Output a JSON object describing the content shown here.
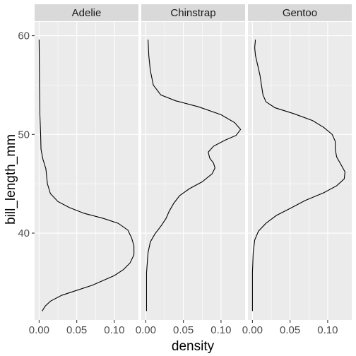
{
  "chart_data": {
    "type": "line",
    "orientation": "horizontal-density",
    "facet_by": "species",
    "xlabel": "density",
    "ylabel": "bill_length_mm",
    "xlim": [
      -0.006,
      0.132
    ],
    "ylim": [
      31.2,
      61.4
    ],
    "x_ticks": [
      0.0,
      0.05,
      0.1
    ],
    "x_tick_labels": [
      "0.00",
      "0.05",
      "0.10"
    ],
    "y_ticks": [
      40,
      50,
      60
    ],
    "y_tick_labels": [
      "40",
      "50",
      "60"
    ],
    "grid": true,
    "legend": "none",
    "panels": [
      {
        "name": "Adelie",
        "points": [
          [
            0.0,
            59.6
          ],
          [
            0.0005,
            55.0
          ],
          [
            0.001,
            52.0
          ],
          [
            0.002,
            50.0
          ],
          [
            0.0025,
            48.5
          ],
          [
            0.005,
            47.5
          ],
          [
            0.009,
            46.5
          ],
          [
            0.011,
            45.0
          ],
          [
            0.015,
            44.0
          ],
          [
            0.025,
            43.2
          ],
          [
            0.04,
            42.6
          ],
          [
            0.06,
            42.0
          ],
          [
            0.085,
            41.5
          ],
          [
            0.105,
            41.0
          ],
          [
            0.118,
            40.3
          ],
          [
            0.123,
            39.5
          ],
          [
            0.126,
            38.7
          ],
          [
            0.126,
            37.8
          ],
          [
            0.121,
            37.0
          ],
          [
            0.112,
            36.3
          ],
          [
            0.1,
            35.7
          ],
          [
            0.085,
            35.2
          ],
          [
            0.07,
            34.7
          ],
          [
            0.05,
            34.2
          ],
          [
            0.03,
            33.7
          ],
          [
            0.015,
            33.1
          ],
          [
            0.008,
            32.6
          ],
          [
            0.004,
            32.1
          ]
        ]
      },
      {
        "name": "Chinstrap",
        "points": [
          [
            0.003,
            59.6
          ],
          [
            0.004,
            58.0
          ],
          [
            0.006,
            56.5
          ],
          [
            0.01,
            55.0
          ],
          [
            0.02,
            54.0
          ],
          [
            0.04,
            53.4
          ],
          [
            0.07,
            52.8
          ],
          [
            0.1,
            52.0
          ],
          [
            0.118,
            51.2
          ],
          [
            0.126,
            50.5
          ],
          [
            0.12,
            49.9
          ],
          [
            0.105,
            49.4
          ],
          [
            0.09,
            48.8
          ],
          [
            0.083,
            48.2
          ],
          [
            0.085,
            47.6
          ],
          [
            0.09,
            47.1
          ],
          [
            0.092,
            46.6
          ],
          [
            0.088,
            46.0
          ],
          [
            0.075,
            45.2
          ],
          [
            0.058,
            44.5
          ],
          [
            0.045,
            43.8
          ],
          [
            0.037,
            43.0
          ],
          [
            0.031,
            42.2
          ],
          [
            0.027,
            41.5
          ],
          [
            0.021,
            40.8
          ],
          [
            0.012,
            39.9
          ],
          [
            0.006,
            39.1
          ],
          [
            0.003,
            38.0
          ],
          [
            0.001,
            36.0
          ],
          [
            0.001,
            34.0
          ],
          [
            0.001,
            32.1
          ]
        ]
      },
      {
        "name": "Gentoo",
        "points": [
          [
            0.004,
            59.6
          ],
          [
            0.003,
            58.8
          ],
          [
            0.004,
            58.0
          ],
          [
            0.007,
            57.0
          ],
          [
            0.01,
            56.0
          ],
          [
            0.012,
            55.0
          ],
          [
            0.014,
            54.0
          ],
          [
            0.018,
            53.3
          ],
          [
            0.03,
            52.7
          ],
          [
            0.055,
            52.1
          ],
          [
            0.08,
            51.4
          ],
          [
            0.095,
            50.7
          ],
          [
            0.106,
            50.0
          ],
          [
            0.11,
            49.3
          ],
          [
            0.11,
            48.5
          ],
          [
            0.112,
            47.7
          ],
          [
            0.118,
            46.9
          ],
          [
            0.123,
            46.2
          ],
          [
            0.122,
            45.5
          ],
          [
            0.112,
            44.8
          ],
          [
            0.095,
            44.1
          ],
          [
            0.07,
            43.3
          ],
          [
            0.05,
            42.5
          ],
          [
            0.032,
            41.8
          ],
          [
            0.018,
            41.0
          ],
          [
            0.008,
            40.2
          ],
          [
            0.003,
            39.3
          ],
          [
            0.001,
            38.0
          ],
          [
            0.0,
            36.0
          ],
          [
            0.0,
            34.0
          ],
          [
            0.0,
            32.1
          ]
        ]
      }
    ]
  }
}
